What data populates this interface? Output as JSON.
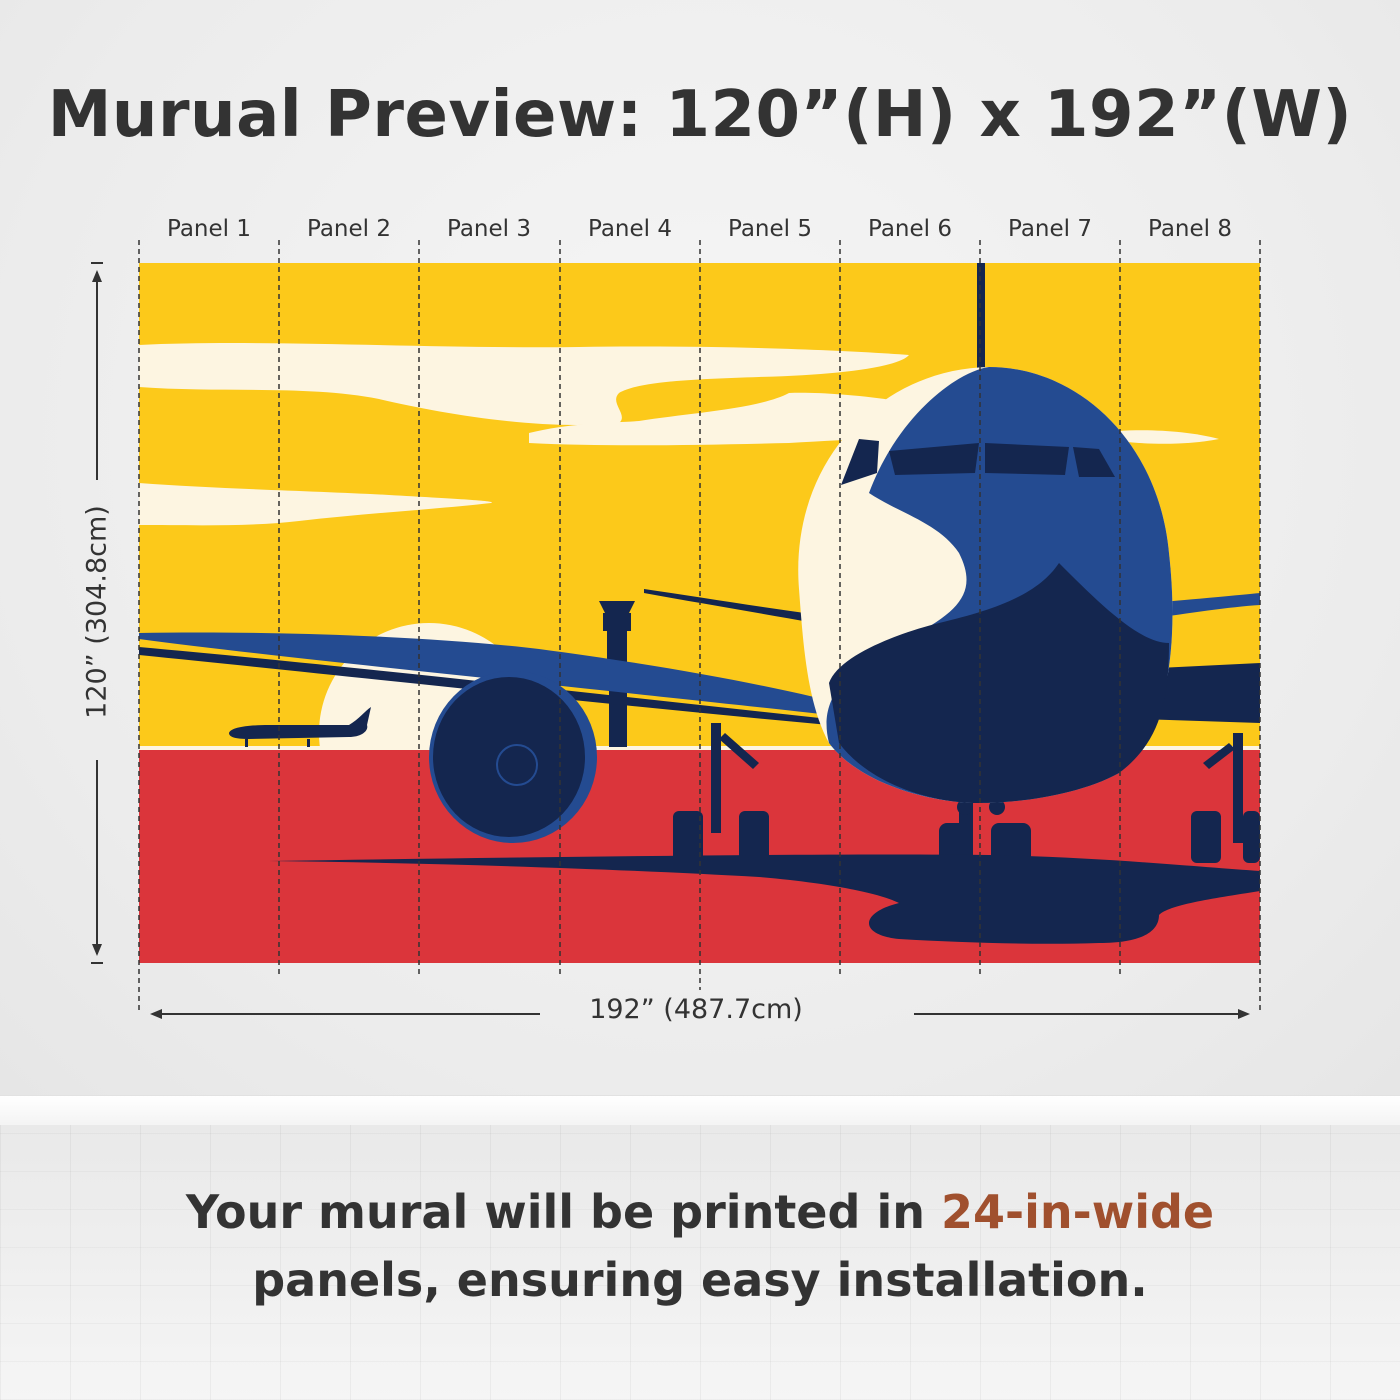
{
  "title": "Murual Preview: 120”(H) x 192”(W)",
  "panels": [
    {
      "label": "Panel 1"
    },
    {
      "label": "Panel 2"
    },
    {
      "label": "Panel 3"
    },
    {
      "label": "Panel 4"
    },
    {
      "label": "Panel 5"
    },
    {
      "label": "Panel 6"
    },
    {
      "label": "Panel 7"
    },
    {
      "label": "Panel 8"
    }
  ],
  "dimensions": {
    "height_label": "120” (304.8cm)",
    "width_label": "192” (487.7cm)"
  },
  "caption": {
    "line1_prefix": "Your mural will be printed in",
    "highlight": "24-in-wide",
    "line2": "panels, ensuring easy installation."
  },
  "colors": {
    "sky": "#fcc91a",
    "ground": "#db353b",
    "plane_dark": "#14264f",
    "plane_blue": "#244b91",
    "cream": "#fdf5e1",
    "caption_accent": "#a0502e",
    "text": "#333333"
  }
}
